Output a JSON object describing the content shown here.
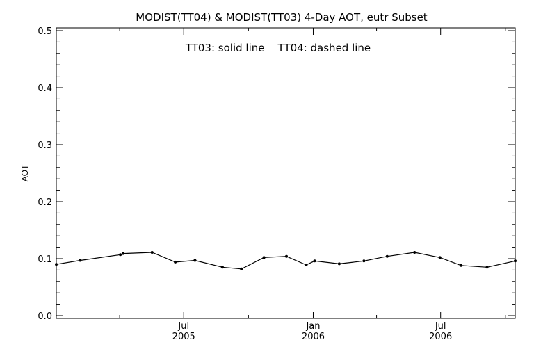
{
  "chart_data": {
    "type": "line",
    "title": "MODIST(TT04) & MODIST(TT03) 4-Day AOT, eutr Subset",
    "annotation": "TT03: solid line    TT04: dashed line",
    "ylabel": "AOT",
    "xlabel": "",
    "xlim": [
      "2005-01-01",
      "2006-10-15"
    ],
    "ylim": [
      0.0,
      0.5
    ],
    "y_ticks": [
      "0.0",
      "0.1",
      "0.2",
      "0.3",
      "0.4",
      "0.5"
    ],
    "x_ticks": [
      {
        "date": "2005-07-01",
        "month": "Jul",
        "year": "2005"
      },
      {
        "date": "2006-01-01",
        "month": "Jan",
        "year": "2006"
      },
      {
        "date": "2006-07-01",
        "month": "Jul",
        "year": "2006"
      }
    ],
    "grid": false,
    "series": [
      {
        "name": "TT03",
        "style": "solid",
        "color": "#000000",
        "points": [
          {
            "x": "2005-01-01",
            "y": 0.09
          },
          {
            "x": "2005-02-04",
            "y": 0.097
          },
          {
            "x": "2005-04-02",
            "y": 0.107
          },
          {
            "x": "2005-04-06",
            "y": 0.109
          },
          {
            "x": "2005-05-17",
            "y": 0.111
          },
          {
            "x": "2005-06-19",
            "y": 0.094
          },
          {
            "x": "2005-07-17",
            "y": 0.097
          },
          {
            "x": "2005-08-25",
            "y": 0.085
          },
          {
            "x": "2005-09-21",
            "y": 0.082
          },
          {
            "x": "2005-10-23",
            "y": 0.102
          },
          {
            "x": "2005-11-24",
            "y": 0.104
          },
          {
            "x": "2005-12-22",
            "y": 0.089
          },
          {
            "x": "2006-01-03",
            "y": 0.096
          },
          {
            "x": "2006-02-07",
            "y": 0.091
          },
          {
            "x": "2006-03-14",
            "y": 0.096
          },
          {
            "x": "2006-04-16",
            "y": 0.104
          },
          {
            "x": "2006-05-25",
            "y": 0.111
          },
          {
            "x": "2006-06-30",
            "y": 0.102
          },
          {
            "x": "2006-07-30",
            "y": 0.088
          },
          {
            "x": "2006-09-05",
            "y": 0.085
          },
          {
            "x": "2006-10-15",
            "y": 0.096
          }
        ]
      }
    ]
  }
}
